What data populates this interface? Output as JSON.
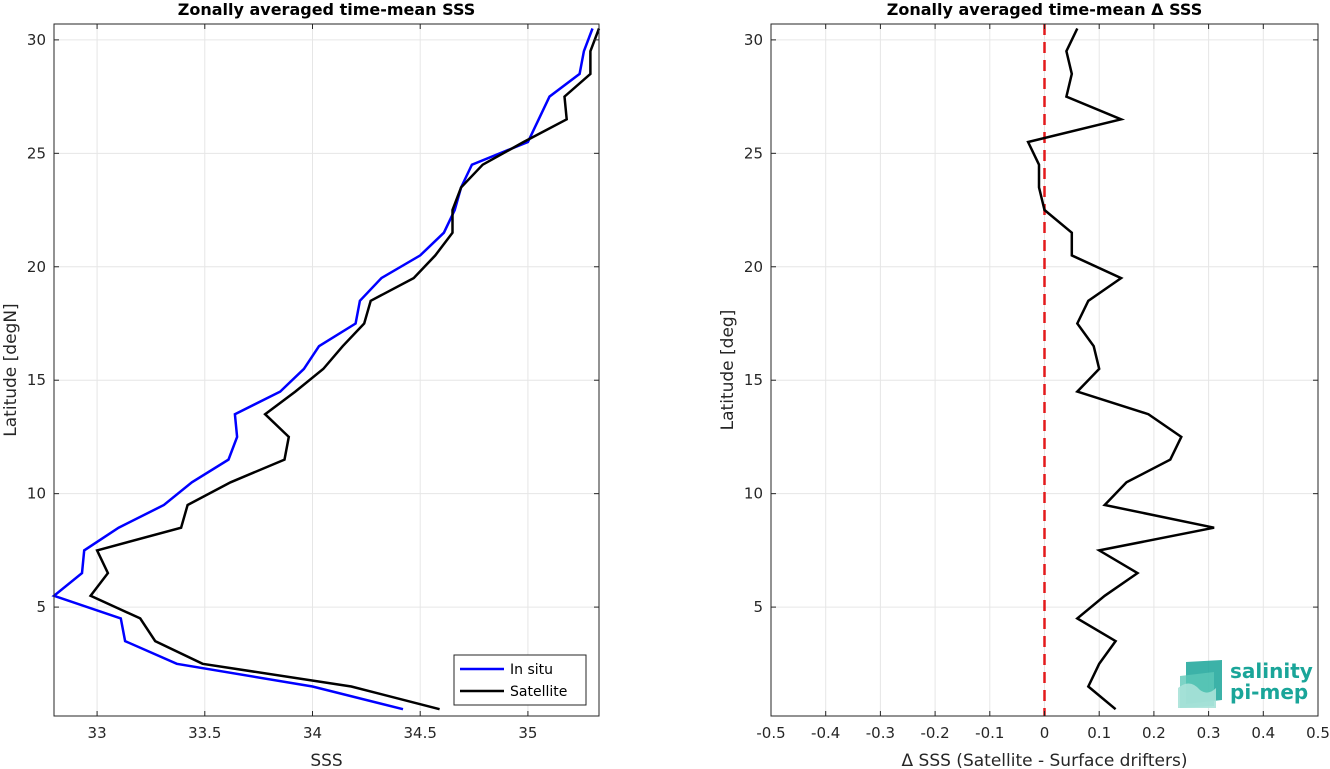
{
  "chart_data": [
    {
      "type": "line",
      "title": "Zonally averaged time-mean SSS",
      "xlabel": "SSS",
      "ylabel": "Latitude [degN]",
      "xlim": [
        32.8,
        35.33
      ],
      "ylim": [
        0.2,
        30.7
      ],
      "xticks": [
        33,
        33.5,
        34,
        34.5,
        35
      ],
      "yticks": [
        5,
        10,
        15,
        20,
        25,
        30
      ],
      "grid": true,
      "legend_position": "bottom-right",
      "series": [
        {
          "name": "In situ",
          "color": "#0000ff",
          "points": [
            [
              34.42,
              0.5
            ],
            [
              34.0,
              1.5
            ],
            [
              33.37,
              2.5
            ],
            [
              33.13,
              3.5
            ],
            [
              33.11,
              4.5
            ],
            [
              32.8,
              5.5
            ],
            [
              32.93,
              6.5
            ],
            [
              32.94,
              7.5
            ],
            [
              33.1,
              8.5
            ],
            [
              33.31,
              9.5
            ],
            [
              33.44,
              10.5
            ],
            [
              33.61,
              11.5
            ],
            [
              33.65,
              12.5
            ],
            [
              33.64,
              13.5
            ],
            [
              33.85,
              14.5
            ],
            [
              33.96,
              15.5
            ],
            [
              34.03,
              16.5
            ],
            [
              34.2,
              17.5
            ],
            [
              34.22,
              18.5
            ],
            [
              34.32,
              19.5
            ],
            [
              34.5,
              20.5
            ],
            [
              34.61,
              21.5
            ],
            [
              34.66,
              22.5
            ],
            [
              34.69,
              23.5
            ],
            [
              34.74,
              24.5
            ],
            [
              35.0,
              25.5
            ],
            [
              35.05,
              26.5
            ],
            [
              35.1,
              27.5
            ],
            [
              35.24,
              28.5
            ],
            [
              35.26,
              29.5
            ],
            [
              35.3,
              30.5
            ]
          ]
        },
        {
          "name": "Satellite",
          "color": "#000000",
          "points": [
            [
              34.59,
              0.5
            ],
            [
              34.18,
              1.5
            ],
            [
              33.49,
              2.5
            ],
            [
              33.27,
              3.5
            ],
            [
              33.2,
              4.5
            ],
            [
              32.97,
              5.5
            ],
            [
              33.05,
              6.5
            ],
            [
              33.0,
              7.5
            ],
            [
              33.39,
              8.5
            ],
            [
              33.42,
              9.5
            ],
            [
              33.62,
              10.5
            ],
            [
              33.87,
              11.5
            ],
            [
              33.89,
              12.5
            ],
            [
              33.78,
              13.5
            ],
            [
              33.92,
              14.5
            ],
            [
              34.05,
              15.5
            ],
            [
              34.14,
              16.5
            ],
            [
              34.24,
              17.5
            ],
            [
              34.27,
              18.5
            ],
            [
              34.47,
              19.5
            ],
            [
              34.57,
              20.5
            ],
            [
              34.65,
              21.5
            ],
            [
              34.65,
              22.5
            ],
            [
              34.69,
              23.5
            ],
            [
              34.79,
              24.5
            ],
            [
              34.98,
              25.5
            ],
            [
              35.18,
              26.5
            ],
            [
              35.17,
              27.5
            ],
            [
              35.29,
              28.5
            ],
            [
              35.29,
              29.5
            ],
            [
              35.33,
              30.5
            ]
          ]
        }
      ]
    },
    {
      "type": "line",
      "title": "Zonally averaged time-mean Δ SSS",
      "xlabel": "Δ SSS (Satellite - Surface drifters)",
      "ylabel": "Latitude [deg]",
      "xlim": [
        -0.5,
        0.5
      ],
      "ylim": [
        0.2,
        30.7
      ],
      "xticks": [
        -0.5,
        -0.4,
        -0.3,
        -0.2,
        -0.1,
        0,
        0.1,
        0.2,
        0.3,
        0.4,
        0.5
      ],
      "yticks": [
        5,
        10,
        15,
        20,
        25,
        30
      ],
      "grid": true,
      "reference_line": {
        "x": 0,
        "color": "#e31a1c",
        "style": "dashed"
      },
      "series": [
        {
          "name": "",
          "color": "#000000",
          "points": [
            [
              0.13,
              0.5
            ],
            [
              0.08,
              1.5
            ],
            [
              0.1,
              2.5
            ],
            [
              0.13,
              3.5
            ],
            [
              0.06,
              4.5
            ],
            [
              0.11,
              5.5
            ],
            [
              0.17,
              6.5
            ],
            [
              0.1,
              7.5
            ],
            [
              0.31,
              8.5
            ],
            [
              0.11,
              9.5
            ],
            [
              0.15,
              10.5
            ],
            [
              0.23,
              11.5
            ],
            [
              0.25,
              12.5
            ],
            [
              0.19,
              13.5
            ],
            [
              0.06,
              14.5
            ],
            [
              0.1,
              15.5
            ],
            [
              0.09,
              16.5
            ],
            [
              0.06,
              17.5
            ],
            [
              0.08,
              18.5
            ],
            [
              0.14,
              19.5
            ],
            [
              0.05,
              20.5
            ],
            [
              0.05,
              21.5
            ],
            [
              0.0,
              22.5
            ],
            [
              -0.01,
              23.5
            ],
            [
              -0.01,
              24.5
            ],
            [
              -0.03,
              25.5
            ],
            [
              0.14,
              26.5
            ],
            [
              0.04,
              27.5
            ],
            [
              0.05,
              28.5
            ],
            [
              0.04,
              29.5
            ],
            [
              0.06,
              30.5
            ]
          ]
        }
      ]
    }
  ],
  "logo": {
    "line1": "salinity",
    "line2": "pi-mep",
    "color": "#1aa599"
  }
}
